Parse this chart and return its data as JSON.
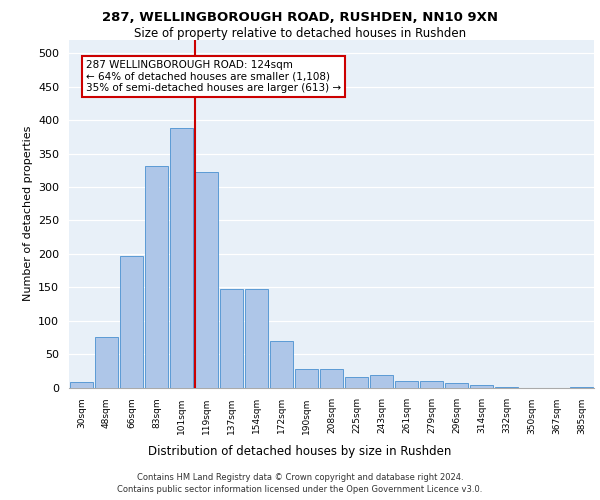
{
  "title1": "287, WELLINGBOROUGH ROAD, RUSHDEN, NN10 9XN",
  "title2": "Size of property relative to detached houses in Rushden",
  "xlabel": "Distribution of detached houses by size in Rushden",
  "ylabel": "Number of detached properties",
  "footer1": "Contains HM Land Registry data © Crown copyright and database right 2024.",
  "footer2": "Contains public sector information licensed under the Open Government Licence v3.0.",
  "annotation_line1": "287 WELLINGBOROUGH ROAD: 124sqm",
  "annotation_line2": "← 64% of detached houses are smaller (1,108)",
  "annotation_line3": "35% of semi-detached houses are larger (613) →",
  "bar_labels": [
    "30sqm",
    "48sqm",
    "66sqm",
    "83sqm",
    "101sqm",
    "119sqm",
    "137sqm",
    "154sqm",
    "172sqm",
    "190sqm",
    "208sqm",
    "225sqm",
    "243sqm",
    "261sqm",
    "279sqm",
    "296sqm",
    "314sqm",
    "332sqm",
    "350sqm",
    "367sqm",
    "385sqm"
  ],
  "bar_values": [
    8,
    75,
    197,
    332,
    389,
    322,
    148,
    148,
    70,
    28,
    28,
    15,
    18,
    10,
    10,
    6,
    3,
    1,
    0,
    0,
    1
  ],
  "bar_color": "#aec6e8",
  "bar_edge_color": "#5b9bd5",
  "vline_color": "#cc0000",
  "ylim": [
    0,
    520
  ],
  "yticks": [
    0,
    50,
    100,
    150,
    200,
    250,
    300,
    350,
    400,
    450,
    500
  ],
  "bg_color": "#e8f0f8",
  "annotation_box_color": "#ffffff",
  "annotation_box_edge": "#cc0000",
  "vline_index": 5
}
